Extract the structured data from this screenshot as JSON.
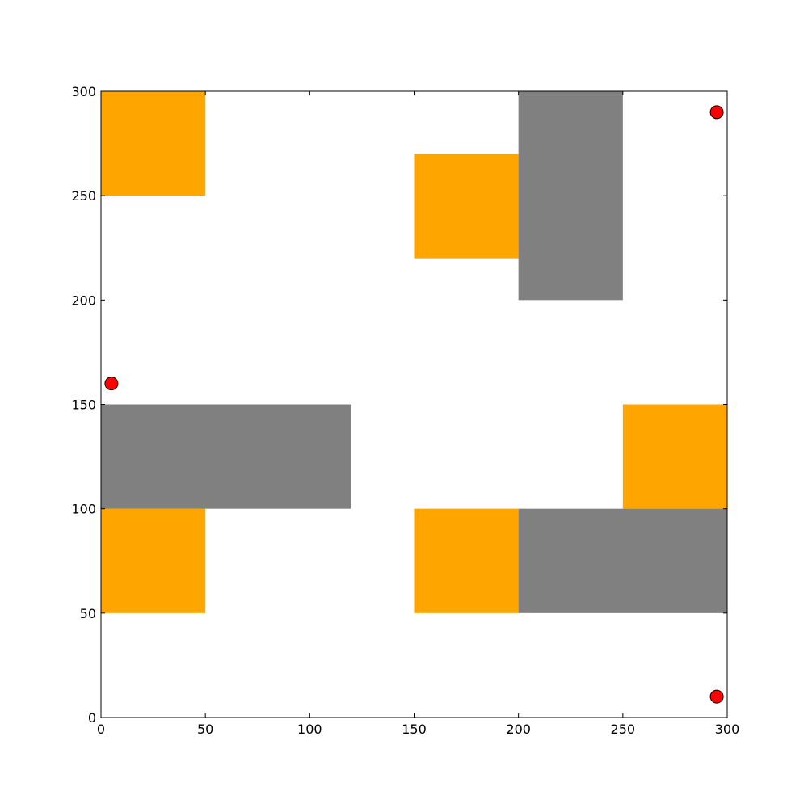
{
  "chart_data": {
    "type": "scatter",
    "title": "",
    "xlabel": "",
    "ylabel": "",
    "xlim": [
      0,
      300
    ],
    "ylim": [
      0,
      300
    ],
    "grid": false,
    "x_ticks": [
      "0",
      "50",
      "100",
      "150",
      "200",
      "250",
      "300"
    ],
    "y_ticks": [
      "0",
      "50",
      "100",
      "150",
      "200",
      "250",
      "300"
    ],
    "rectangles": [
      {
        "kind": "orange",
        "color": "#ffa500",
        "x0": 0,
        "y0": 250,
        "x1": 50,
        "y1": 300
      },
      {
        "kind": "orange",
        "color": "#ffa500",
        "x0": 150,
        "y0": 220,
        "x1": 200,
        "y1": 270
      },
      {
        "kind": "orange",
        "color": "#ffa500",
        "x0": 0,
        "y0": 50,
        "x1": 50,
        "y1": 100
      },
      {
        "kind": "orange",
        "color": "#ffa500",
        "x0": 150,
        "y0": 50,
        "x1": 200,
        "y1": 100
      },
      {
        "kind": "orange",
        "color": "#ffa500",
        "x0": 250,
        "y0": 100,
        "x1": 300,
        "y1": 150
      },
      {
        "kind": "gray",
        "color": "#808080",
        "x0": 200,
        "y0": 200,
        "x1": 250,
        "y1": 300
      },
      {
        "kind": "gray",
        "color": "#808080",
        "x0": 0,
        "y0": 100,
        "x1": 120,
        "y1": 150
      },
      {
        "kind": "gray",
        "color": "#808080",
        "x0": 200,
        "y0": 50,
        "x1": 300,
        "y1": 100
      }
    ],
    "points": [
      {
        "x": 5,
        "y": 160
      },
      {
        "x": 295,
        "y": 290
      },
      {
        "x": 295,
        "y": 10
      }
    ],
    "point_color": "#ff0000"
  }
}
